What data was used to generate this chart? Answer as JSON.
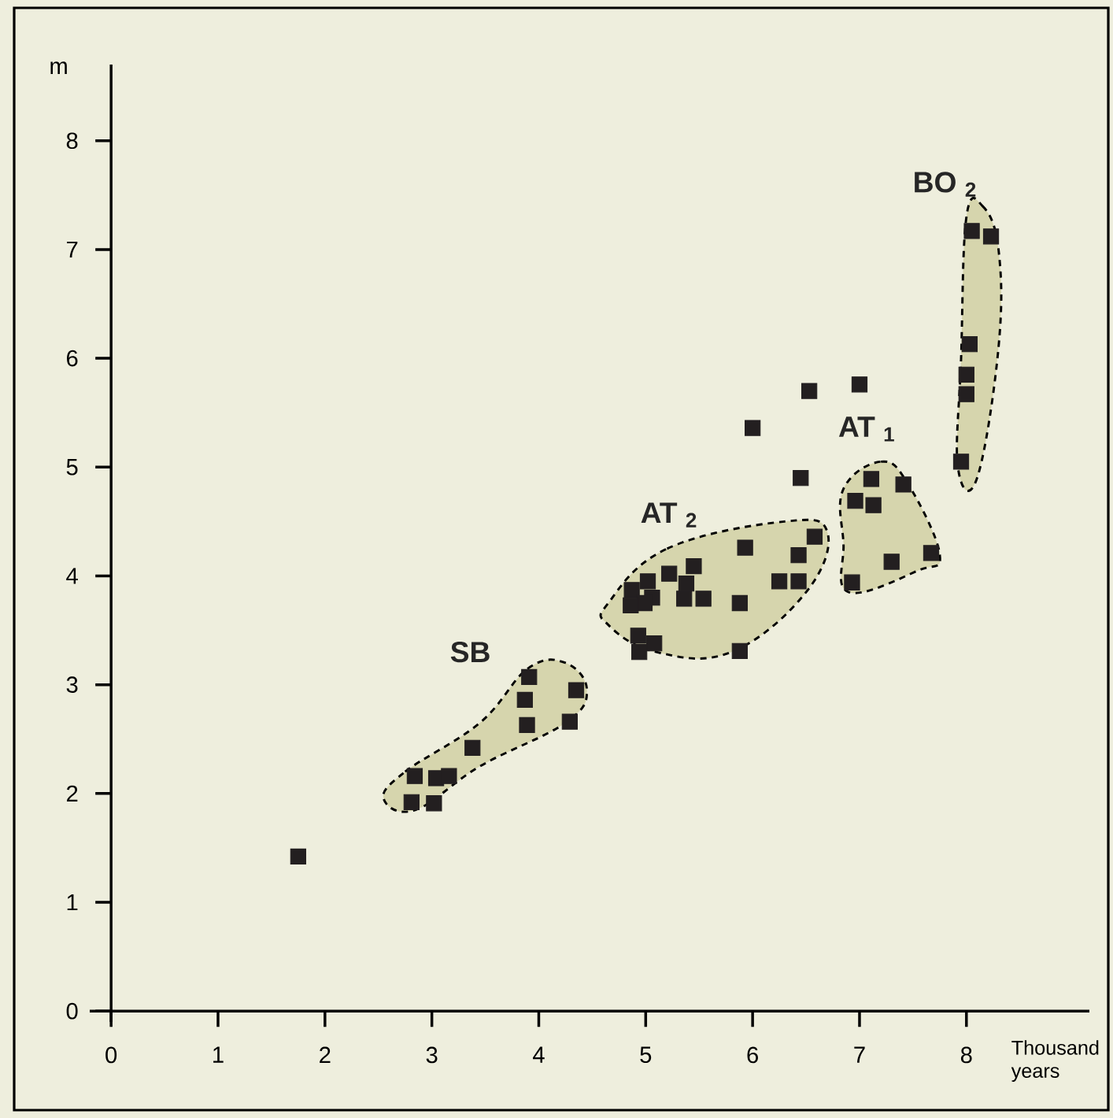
{
  "chart_data": {
    "type": "scatter",
    "xlabel": "Thousand years",
    "ylabel": "m",
    "x": [
      1.75,
      2.84,
      3.04,
      3.16,
      2.81,
      3.02,
      3.38,
      3.91,
      3.87,
      3.89,
      4.35,
      4.29,
      4.87,
      5.06,
      4.99,
      4.86,
      5.02,
      5.22,
      5.45,
      5.38,
      5.36,
      5.54,
      5.88,
      4.93,
      5.08,
      4.94,
      5.88,
      5.93,
      6.25,
      6.43,
      6.43,
      6.58,
      6.45,
      6.0,
      6.53,
      7.0,
      7.11,
      7.41,
      6.96,
      7.13,
      7.67,
      7.3,
      6.93,
      8.05,
      8.23,
      8.03,
      8.0,
      8.0,
      7.95
    ],
    "values": [
      1.42,
      2.16,
      2.14,
      2.16,
      1.92,
      1.91,
      2.42,
      3.07,
      2.86,
      2.63,
      2.95,
      2.66,
      3.87,
      3.8,
      3.75,
      3.73,
      3.95,
      4.02,
      4.09,
      3.93,
      3.79,
      3.79,
      3.75,
      3.45,
      3.38,
      3.3,
      3.31,
      4.26,
      3.95,
      3.95,
      4.19,
      4.36,
      4.9,
      5.36,
      5.7,
      5.76,
      4.89,
      4.84,
      4.69,
      4.65,
      4.21,
      4.13,
      3.94,
      7.17,
      7.12,
      6.13,
      5.85,
      5.67,
      5.05
    ],
    "color": "#231f20",
    "marker": "square",
    "xlim": [
      -0.2,
      9.15
    ],
    "ylim": [
      -0.1,
      8.7
    ],
    "xticks": [
      0,
      1,
      2,
      3,
      4,
      5,
      6,
      7,
      8
    ],
    "yticks": [
      0,
      1,
      2,
      3,
      4,
      5,
      6,
      7,
      8
    ],
    "annotations": [
      "SB",
      "AT $_{2}$",
      "AT $_{1}$",
      "BO $_{2}$"
    ]
  }
}
